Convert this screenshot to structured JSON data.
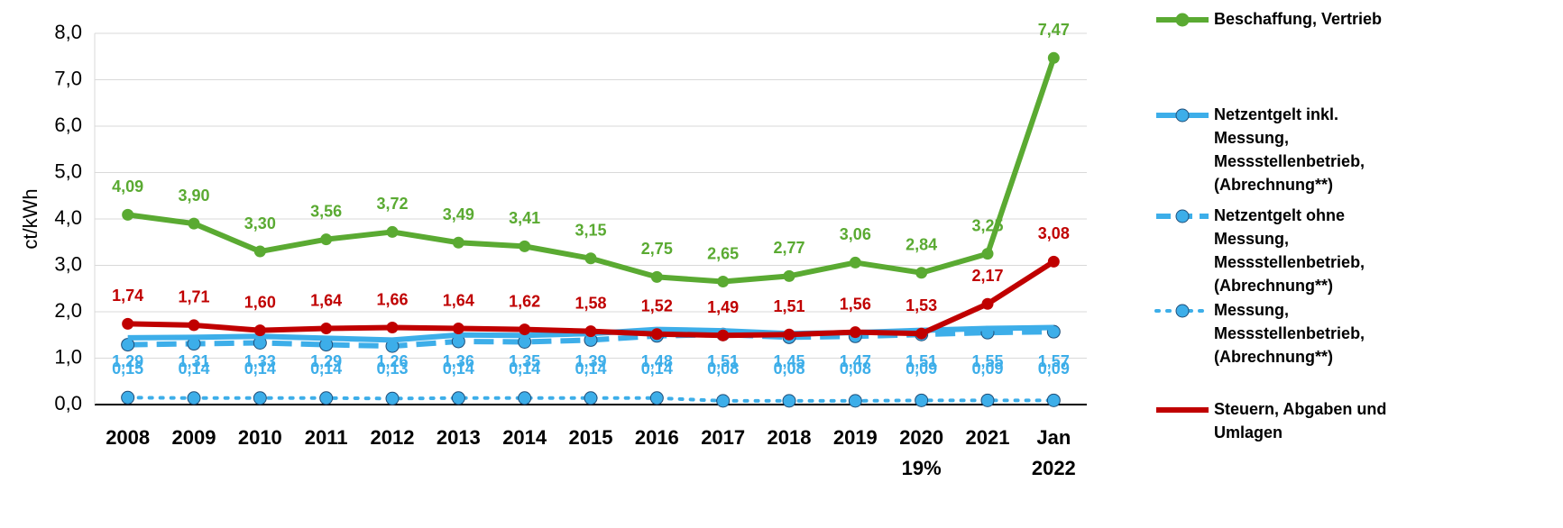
{
  "chart_data": {
    "type": "line",
    "y_label": "ct/kWh",
    "categories": [
      "2008",
      "2009",
      "2010",
      "2011",
      "2012",
      "2013",
      "2014",
      "2015",
      "2016",
      "2017",
      "2018",
      "2019",
      "2020\n19%",
      "2021",
      "Jan\n2022"
    ],
    "ylim": [
      0,
      8
    ],
    "yticks": [
      {
        "value": 0,
        "label": "0,0"
      },
      {
        "value": 1,
        "label": "1,0"
      },
      {
        "value": 2,
        "label": "2,0"
      },
      {
        "value": 3,
        "label": "3,0"
      },
      {
        "value": 4,
        "label": "4,0"
      },
      {
        "value": 5,
        "label": "5,0"
      },
      {
        "value": 6,
        "label": "6,0"
      },
      {
        "value": 7,
        "label": "7,0"
      },
      {
        "value": 8,
        "label": "8,0"
      }
    ],
    "grid": true,
    "series": [
      {
        "name": "Beschaffung, Vertrieb",
        "color": "#5aaa32",
        "style": "solid",
        "values": [
          4.09,
          3.9,
          3.3,
          3.56,
          3.72,
          3.49,
          3.41,
          3.15,
          2.75,
          2.65,
          2.77,
          3.06,
          2.84,
          3.25,
          7.47
        ],
        "value_labels": [
          "4,09",
          "3,90",
          "3,30",
          "3,56",
          "3,72",
          "3,49",
          "3,41",
          "3,15",
          "2,75",
          "2,65",
          "2,77",
          "3,06",
          "2,84",
          "3,25",
          "7,47"
        ]
      },
      {
        "name": "Netzentgelt inkl. Messung, Messstellenbetrieb, (Abrechnung**)",
        "color": "#3daee9",
        "style": "solid",
        "values": [
          1.44,
          1.45,
          1.47,
          1.43,
          1.39,
          1.5,
          1.49,
          1.53,
          1.62,
          1.59,
          1.53,
          1.55,
          1.6,
          1.64,
          1.66
        ]
      },
      {
        "name": "Netzentgelt ohne Messung, Messstellenbetrieb, (Abrechnung**)",
        "color": "#3daee9",
        "style": "dashed",
        "values": [
          1.29,
          1.31,
          1.33,
          1.29,
          1.26,
          1.36,
          1.35,
          1.39,
          1.48,
          1.51,
          1.45,
          1.47,
          1.51,
          1.55,
          1.57
        ],
        "value_labels": [
          "1,29",
          "1,31",
          "1,33",
          "1,29",
          "1,26",
          "1,36",
          "1,35",
          "1,39",
          "1,48",
          "1,51",
          "1,45",
          "1,47",
          "1,51",
          "1,55",
          "1,57"
        ]
      },
      {
        "name": "Messung, Messstellenbetrieb, (Abrechnung**)",
        "color": "#3daee9",
        "style": "dotted",
        "values": [
          0.15,
          0.14,
          0.14,
          0.14,
          0.13,
          0.14,
          0.14,
          0.14,
          0.14,
          0.08,
          0.08,
          0.08,
          0.09,
          0.09,
          0.09
        ],
        "value_labels": [
          "0,15",
          "0,14",
          "0,14",
          "0,14",
          "0,13",
          "0,14",
          "0,14",
          "0,14",
          "0,14",
          "0,08",
          "0,08",
          "0,08",
          "0,09",
          "0,09",
          "0,09"
        ]
      },
      {
        "name": "Steuern, Abgaben und Umlagen",
        "color": "#c00000",
        "style": "solid",
        "values": [
          1.74,
          1.71,
          1.6,
          1.64,
          1.66,
          1.64,
          1.62,
          1.58,
          1.52,
          1.49,
          1.51,
          1.56,
          1.53,
          2.17,
          3.08
        ],
        "value_labels": [
          "1,74",
          "1,71",
          "1,60",
          "1,64",
          "1,66",
          "1,64",
          "1,62",
          "1,58",
          "1,52",
          "1,49",
          "1,51",
          "1,56",
          "1,53",
          "2,17",
          "3,08"
        ]
      }
    ]
  }
}
